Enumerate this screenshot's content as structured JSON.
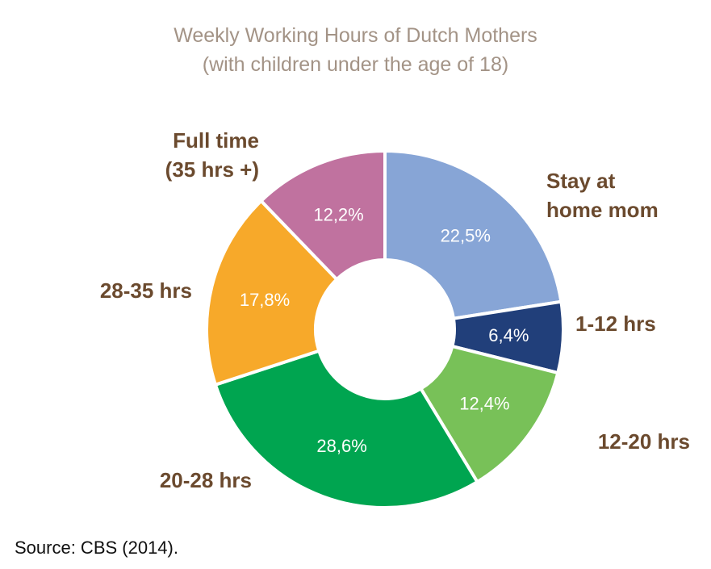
{
  "chart_data": {
    "type": "pie",
    "variant": "donut",
    "title": "Weekly Working Hours of Dutch Mothers",
    "subtitle": "(with children under the age of 18)",
    "source": "Source: CBS (2014).",
    "slices": [
      {
        "label": [
          "Stay at",
          "home mom"
        ],
        "value": 22.5,
        "value_label": "22,5%",
        "color": "#87a5d6"
      },
      {
        "label": [
          "1-12 hrs"
        ],
        "value": 6.4,
        "value_label": "6,4%",
        "color": "#213f7a"
      },
      {
        "label": [
          "12-20 hrs"
        ],
        "value": 12.4,
        "value_label": "12,4%",
        "color": "#78c158"
      },
      {
        "label": [
          "20-28 hrs"
        ],
        "value": 28.6,
        "value_label": "28,6%",
        "color": "#00a550"
      },
      {
        "label": [
          "28-35 hrs"
        ],
        "value": 17.8,
        "value_label": "17,8%",
        "color": "#f7a92a"
      },
      {
        "label": [
          "Full time",
          "(35 hrs +)"
        ],
        "value": 12.2,
        "value_label": "12,2%",
        "color": "#c0729f"
      }
    ],
    "colors": {
      "label_text": "#6b4a2e",
      "value_text": "#ffffff",
      "title_text": "#a39386"
    }
  }
}
